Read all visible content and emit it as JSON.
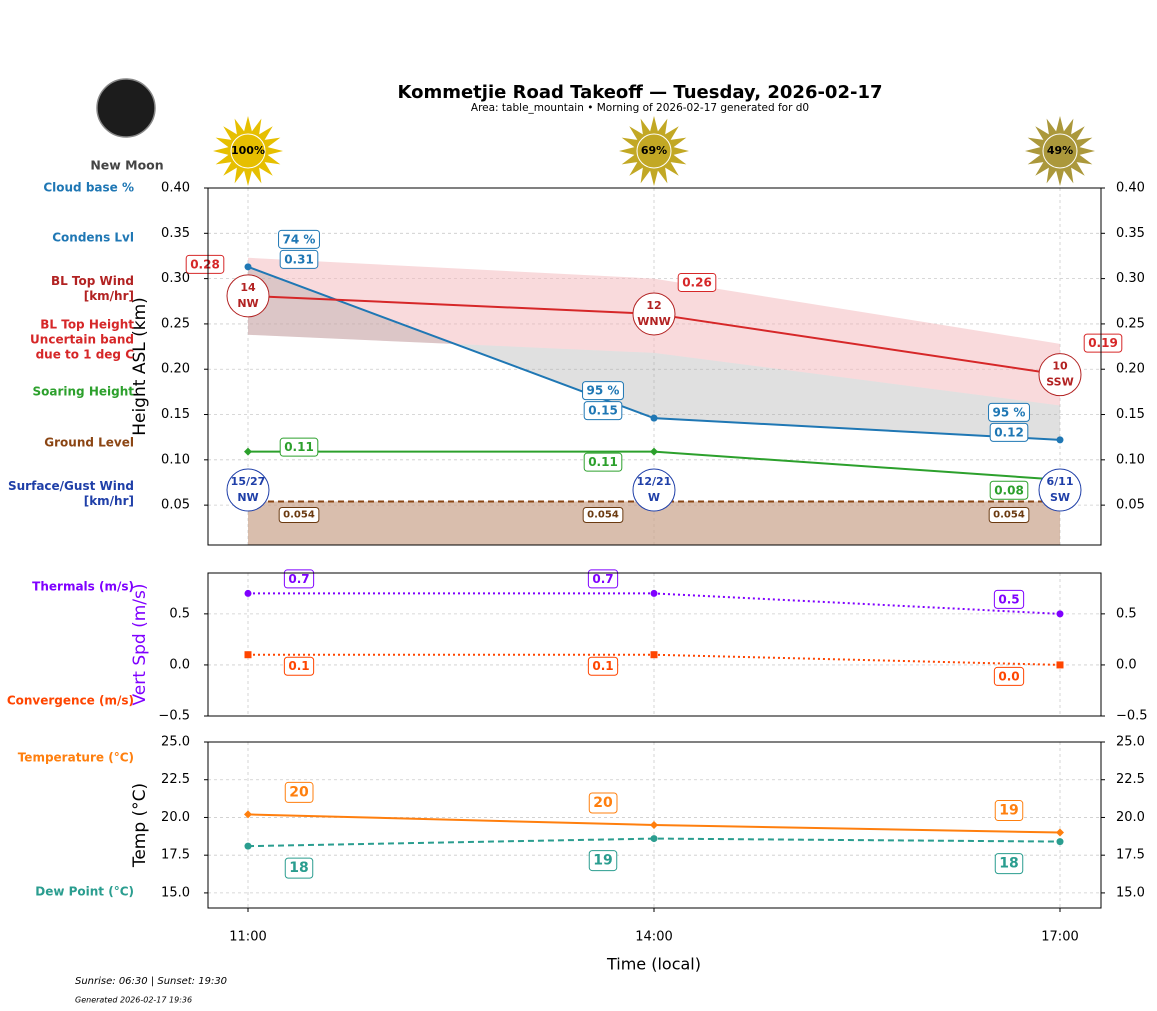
{
  "title": "Kommetjie Road Takeoff — Tuesday, 2026-02-17",
  "subtitle": "Area: table_mountain • Morning of 2026-02-17 generated for d0",
  "moon": "New Moon",
  "sun": {
    "values": [
      100,
      69,
      49
    ],
    "value_labels": [
      "100%",
      "69%",
      "49%"
    ]
  },
  "footer": [
    "Sunrise: 06:30 | Sunset: 19:30",
    "Generated 2026-02-17 19:36"
  ],
  "chart_data": [
    {
      "type": "line",
      "ylabel": "Height ASL (km)",
      "ylim": [
        0.006,
        0.4
      ],
      "yticks": [
        0.05,
        {
          "value": 0.1,
          "label": "0.10"
        },
        0.15,
        {
          "value": 0.2,
          "label": "0.20"
        },
        0.25,
        {
          "value": 0.3,
          "label": "0.30"
        },
        0.35,
        {
          "value": 0.4,
          "label": "0.40"
        }
      ],
      "grid": true,
      "cloud_base": {
        "name": "Cloud base %",
        "color": "#1f77b4",
        "values": [
          74,
          95,
          95
        ],
        "value_labels": [
          "74 %",
          "95 %",
          "95 %"
        ]
      },
      "series": [
        {
          "name": "Condens Lvl",
          "color": "#1f77b4",
          "style": "solid",
          "marker": "circle",
          "values": [
            0.313,
            0.146,
            0.122
          ],
          "value_labels": [
            "0.31",
            "0.15",
            "0.12"
          ]
        },
        {
          "name": "BL Top Height Uncertain band due to 1 deg C",
          "color": "#d62728",
          "style": "solid",
          "values": [
            0.281,
            0.261,
            0.194
          ],
          "value_labels": [
            "0.28",
            "0.26",
            "0.19"
          ],
          "band_low": [
            0.238,
            0.218,
            0.16
          ],
          "band_high": [
            0.323,
            0.3,
            0.228
          ]
        },
        {
          "name": "Soaring Height",
          "color": "#2ca02c",
          "style": "solid",
          "marker": "diamond",
          "values": [
            0.109,
            0.109,
            0.078
          ],
          "value_labels": [
            "0.11",
            "0.11",
            "0.08"
          ]
        },
        {
          "name": "Ground Level",
          "color": "#8b4513",
          "style": "dashed",
          "values": [
            0.054,
            0.054,
            0.054
          ]
        }
      ],
      "winds": [
        {
          "name": "BL Top Wind [km/hr]",
          "color": "#b22222",
          "values": [
            14,
            12,
            10
          ],
          "directions": [
            "NW",
            "WNW",
            "SSW"
          ]
        },
        {
          "name": "Surface/Gust Wind [km/hr]",
          "color": "#1f3fa8",
          "values": [
            15,
            12,
            6
          ],
          "gusts": [
            27,
            21,
            11
          ],
          "value_labels": [
            "15/27",
            "12/21",
            "6/11"
          ],
          "directions": [
            "NW",
            "W",
            "SW"
          ]
        }
      ]
    },
    {
      "type": "line",
      "ylabel": "Vert Spd (m/s)",
      "ylabel_color": "#7f00ff",
      "ylim": [
        -0.5,
        0.9
      ],
      "yticks": [
        {
          "value": -0.5,
          "label": "−0.5"
        },
        {
          "value": 0,
          "label": "0.0"
        },
        0.5
      ],
      "grid": true,
      "series": [
        {
          "name": "Thermals (m/s)",
          "color": "#7f00ff",
          "style": "dotted",
          "marker": "circle",
          "values": [
            0.7,
            0.7,
            0.5
          ]
        },
        {
          "name": "Convergence (m/s)",
          "color": "#ff4500",
          "style": "dotted",
          "marker": "square",
          "values": [
            0.1,
            0.1,
            0.0
          ],
          "value_labels": [
            "0.1",
            "0.1",
            "0.0"
          ]
        }
      ]
    },
    {
      "type": "line",
      "ylabel": "Temp (°C)",
      "xlabel": "Time (local)",
      "categories": [
        "11:00",
        "14:00",
        "17:00"
      ],
      "ylim": [
        14,
        25
      ],
      "yticks": [
        {
          "value": 15,
          "label": "15.0"
        },
        17.5,
        {
          "value": 20,
          "label": "20.0"
        },
        22.5,
        {
          "value": 25,
          "label": "25.0"
        }
      ],
      "grid": true,
      "series": [
        {
          "name": "Temperature (°C)",
          "color": "#ff7f0e",
          "style": "solid",
          "marker": "diamond",
          "values": [
            20.2,
            19.5,
            19.0
          ],
          "value_labels": [
            "20",
            "20",
            "19"
          ]
        },
        {
          "name": "Dew Point (°C)",
          "color": "#2a9d8f",
          "style": "dashed",
          "marker": "circle",
          "values": [
            18.1,
            18.6,
            18.4
          ],
          "value_labels": [
            "18",
            "19",
            "18"
          ]
        }
      ]
    }
  ]
}
